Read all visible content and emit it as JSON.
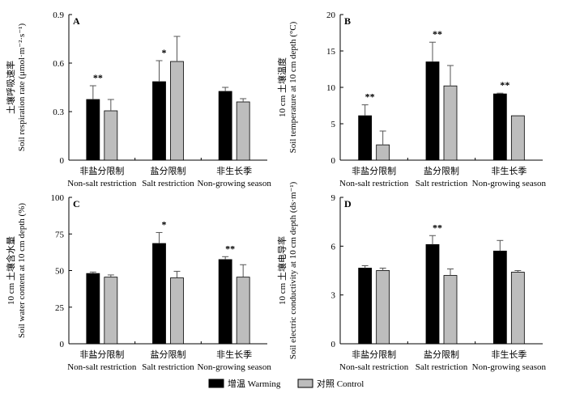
{
  "legend": {
    "warming": "增温 Warming",
    "control": "对照  Control"
  },
  "colors": {
    "warming": "#000000",
    "control": "#bdbdbd",
    "axis": "#000000"
  },
  "categories_cn": [
    "非盐分限制",
    "盐分限制",
    "非生长季"
  ],
  "categories_en": [
    "Non-salt restriction",
    "Salt restriction",
    "Non-growing season"
  ],
  "chart_data": [
    {
      "type": "bar",
      "panel": "A",
      "ylabel_cn": "土壤呼吸速率",
      "ylabel_en": "Soil respiration rate (μmol·m⁻²·s⁻¹)",
      "ylim": [
        0,
        0.9
      ],
      "yticks": [
        "0",
        "0.3",
        "0.6",
        "0.9"
      ],
      "yticks_values": [
        0,
        0.3,
        0.6,
        0.9
      ],
      "series": [
        {
          "name": "增温 Warming",
          "values": [
            0.375,
            0.485,
            0.425
          ],
          "errors": [
            0.085,
            0.13,
            0.025
          ]
        },
        {
          "name": "对照  Control",
          "values": [
            0.305,
            0.61,
            0.36
          ],
          "errors": [
            0.07,
            0.155,
            0.02
          ]
        }
      ],
      "significance": [
        "**",
        "*",
        ""
      ]
    },
    {
      "type": "bar",
      "panel": "B",
      "ylabel_cn": "10 cm 土壤温度",
      "ylabel_en": "Soil temperature at 10 cm depth (°C)",
      "ylim": [
        0,
        20
      ],
      "yticks": [
        "0",
        "5",
        "10",
        "15",
        "20"
      ],
      "yticks_values": [
        0,
        5,
        10,
        15,
        20
      ],
      "series": [
        {
          "name": "增温 Warming",
          "values": [
            6.1,
            13.5,
            9.1
          ],
          "errors": [
            1.5,
            2.7,
            0.1
          ]
        },
        {
          "name": "对照  Control",
          "values": [
            2.1,
            10.2,
            6.1
          ],
          "errors": [
            1.9,
            2.8,
            0
          ]
        }
      ],
      "significance": [
        "**",
        "**",
        "**"
      ]
    },
    {
      "type": "bar",
      "panel": "C",
      "ylabel_cn": "10 cm 土壤含水量",
      "ylabel_en": "Soil water content at 10 cm depth (%)",
      "ylim": [
        0,
        100
      ],
      "yticks": [
        "0",
        "25",
        "50",
        "75",
        "100"
      ],
      "yticks_values": [
        0,
        25,
        50,
        75,
        100
      ],
      "series": [
        {
          "name": "增温 Warming",
          "values": [
            48,
            68.5,
            57.5
          ],
          "errors": [
            1,
            7.5,
            2
          ]
        },
        {
          "name": "对照  Control",
          "values": [
            45.5,
            45,
            45.5
          ],
          "errors": [
            1.5,
            4.5,
            8.5
          ]
        }
      ],
      "significance": [
        "",
        "*",
        "**"
      ]
    },
    {
      "type": "bar",
      "panel": "D",
      "ylabel_cn": "10 cm 土壤电导率",
      "ylabel_en": "Soil electric conductivity at 10 cm depth (ds·m⁻¹)",
      "ylim": [
        0,
        9
      ],
      "yticks": [
        "0",
        "3",
        "6",
        "9"
      ],
      "yticks_values": [
        0,
        3,
        6,
        9
      ],
      "series": [
        {
          "name": "增温 Warming",
          "values": [
            4.65,
            6.1,
            5.7
          ],
          "errors": [
            0.15,
            0.55,
            0.65
          ]
        },
        {
          "name": "对照  Control",
          "values": [
            4.5,
            4.2,
            4.4
          ],
          "errors": [
            0.15,
            0.4,
            0.1
          ]
        }
      ],
      "significance": [
        "",
        "**",
        ""
      ]
    }
  ]
}
